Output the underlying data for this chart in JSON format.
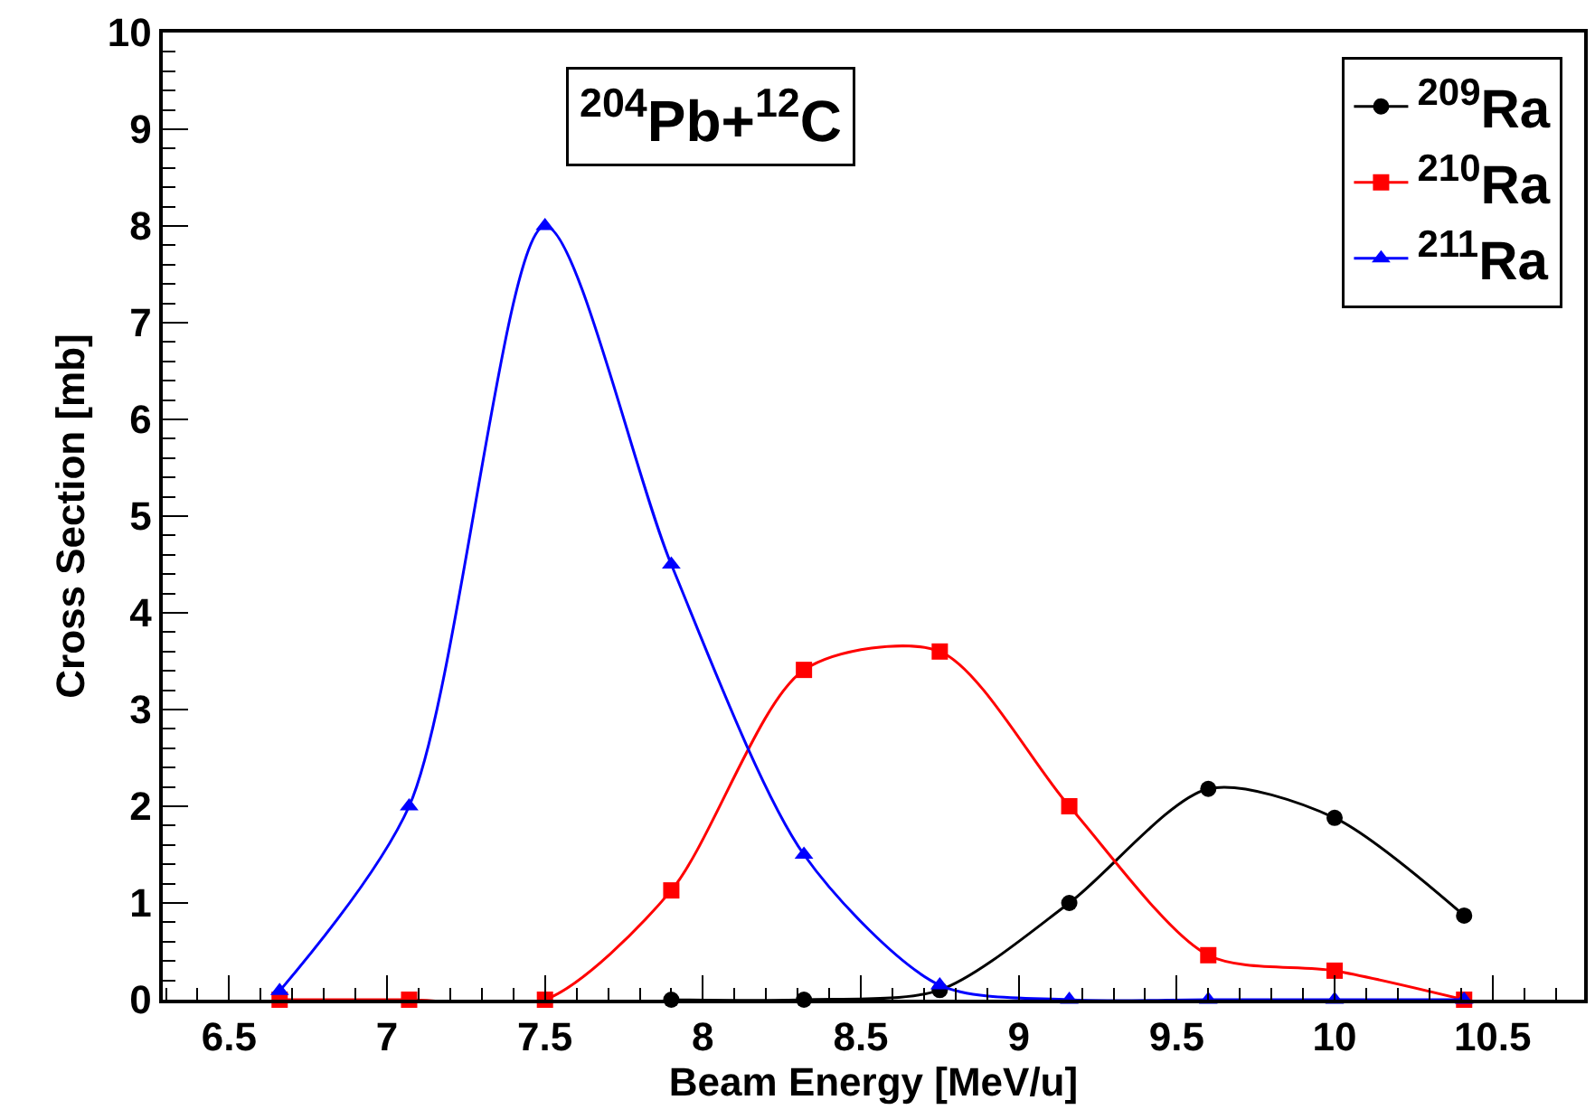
{
  "chart_data": {
    "type": "line",
    "title": "$^{204}$Pb+$^{12}$C",
    "xlabel": "Beam Energy [MeV/u]",
    "ylabel": "Cross Section [mb]",
    "xlim": [
      6.29,
      10.79
    ],
    "xticks": [
      6.5,
      7,
      7.5,
      8,
      8.5,
      9,
      9.5,
      10,
      10.5
    ],
    "ylim": [
      0,
      10
    ],
    "yticks": [
      0,
      1,
      2,
      3,
      4,
      5,
      6,
      7,
      8,
      9,
      10
    ],
    "legend": "top right",
    "series": [
      {
        "name": "$^{209}$Ra",
        "color": "#000000",
        "marker": "circle",
        "x": [
          7.9,
          8.32,
          8.75,
          9.16,
          9.6,
          10.0,
          10.41
        ],
        "values": [
          0,
          0,
          0.1,
          1.0,
          2.18,
          1.88,
          0.87
        ]
      },
      {
        "name": "$^{210}$Ra",
        "color": "#ff0000",
        "marker": "square",
        "x": [
          6.66,
          7.07,
          7.5,
          7.9,
          8.32,
          8.75,
          9.16,
          9.6,
          10.0,
          10.41
        ],
        "values": [
          0,
          0,
          0,
          1.13,
          3.41,
          3.6,
          2.0,
          0.46,
          0.3,
          0
        ]
      },
      {
        "name": "$^{211}$Ra",
        "color": "#0000ff",
        "marker": "triangle",
        "x": [
          6.66,
          7.07,
          7.5,
          7.9,
          8.32,
          8.75,
          9.16,
          9.6,
          10.0,
          10.41
        ],
        "values": [
          0.09,
          2.0,
          8.0,
          4.5,
          1.5,
          0.15,
          0,
          0,
          0,
          0
        ]
      }
    ]
  }
}
